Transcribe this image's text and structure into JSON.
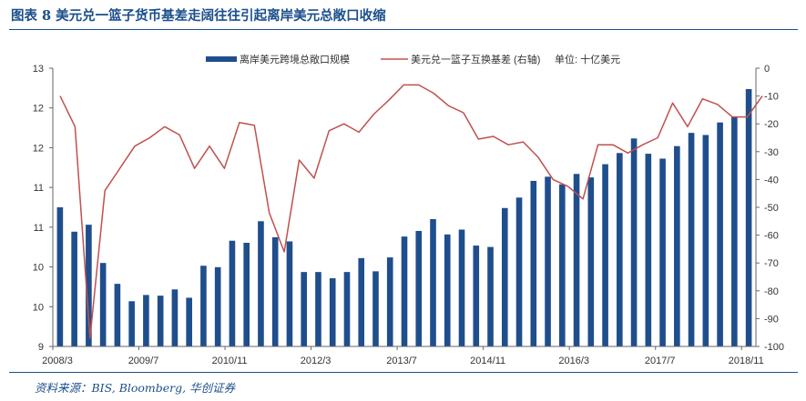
{
  "title": "图表 8   美元兑一篮子货币基差走阔往往引起离岸美元总敞口收缩",
  "source": "资料来源：BIS, Bloomberg, 华创证券",
  "colors": {
    "bar": "#1f4e8c",
    "line": "#c0504d",
    "title": "#1b4f8c",
    "axis": "#666666"
  },
  "chart_data": {
    "type": "bar+line",
    "unit_note": "单位: 十亿美元",
    "legend": [
      "离岸美元跨境总敞口规模",
      "美元兑一篮子互换基差 (右轴)"
    ],
    "x_tick_labels": [
      "2008/3",
      "2009/7",
      "2010/11",
      "2012/3",
      "2013/7",
      "2014/11",
      "2016/3",
      "2017/7",
      "2018/11"
    ],
    "left_axis": {
      "ylim": [
        9,
        13
      ],
      "tick_labels": [
        "9",
        "10",
        "10",
        "11",
        "11",
        "12",
        "12",
        "13"
      ]
    },
    "right_axis": {
      "ylim": [
        -100,
        0
      ],
      "ticks": [
        0,
        -10,
        -20,
        -30,
        -40,
        -50,
        -60,
        -70,
        -80,
        -90,
        -100
      ]
    },
    "series": [
      {
        "name": "离岸美元跨境总敞口规模",
        "type": "bar",
        "axis": "left",
        "values": [
          11.0,
          10.65,
          10.75,
          10.2,
          9.9,
          9.65,
          9.74,
          9.73,
          9.82,
          9.7,
          10.16,
          10.14,
          10.52,
          10.49,
          10.8,
          10.57,
          10.51,
          10.07,
          10.07,
          9.98,
          10.07,
          10.27,
          10.08,
          10.28,
          10.58,
          10.66,
          10.83,
          10.61,
          10.68,
          10.45,
          10.43,
          10.99,
          11.14,
          11.38,
          11.44,
          11.33,
          11.48,
          11.43,
          11.62,
          11.78,
          11.99,
          11.77,
          11.7,
          11.88,
          12.07,
          12.04,
          12.22,
          12.3,
          12.7
        ]
      },
      {
        "name": "美元兑一篮子互换基差 (右轴)",
        "type": "line",
        "axis": "right",
        "values": [
          -10,
          -21,
          -97,
          -44,
          -36,
          -28,
          -25,
          -21,
          -24,
          -36,
          -28,
          -36,
          -19.5,
          -20.5,
          -52,
          -66,
          -33,
          -39.5,
          -22.5,
          -20,
          -23,
          -16.5,
          -11.5,
          -6,
          -6,
          -9,
          -13.5,
          -16,
          -25.5,
          -24.5,
          -27.5,
          -26.5,
          -32,
          -40,
          -42.5,
          -47,
          -27.5,
          -27.5,
          -30.5,
          -27.5,
          -25,
          -12.5,
          -21,
          -11,
          -13,
          -17.5,
          -17.5,
          -10
        ]
      }
    ]
  }
}
